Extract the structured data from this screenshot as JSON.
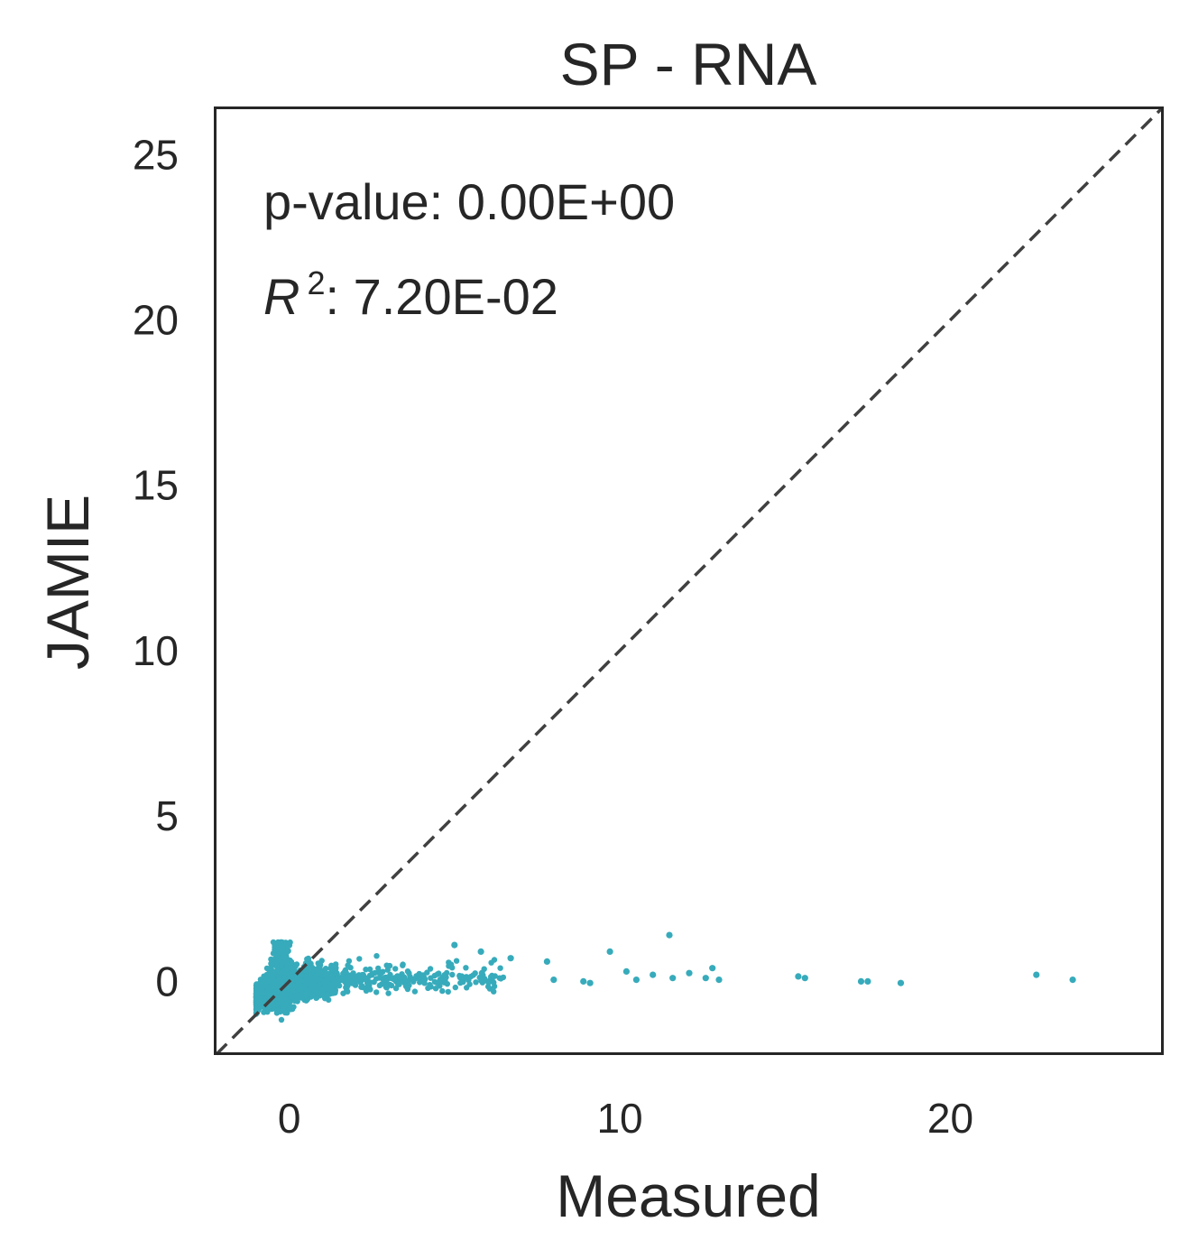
{
  "chart_data": {
    "type": "scatter",
    "title": "SP - RNA",
    "xlabel": "Measured",
    "ylabel": "JAMIE",
    "xlim": [
      -2.2,
      26.4
    ],
    "ylim": [
      -2.2,
      26.4
    ],
    "xticks": [
      0,
      10,
      20
    ],
    "yticks": [
      0,
      5,
      10,
      15,
      20,
      25
    ],
    "grid": false,
    "legend": "none",
    "reference_line": {
      "type": "identity",
      "style": "dashed",
      "color": "#404040"
    },
    "point_color": "#37abbb",
    "annotations": {
      "pvalue": "p-value: 0.00E+00",
      "r2_symbol": "R",
      "r2_exp": "2",
      "r2_value": ": 7.20E-02"
    },
    "highlight_points": [
      {
        "x": 11.5,
        "y": 1.4
      },
      {
        "x": 9.7,
        "y": 0.9
      },
      {
        "x": 5.0,
        "y": 1.1
      },
      {
        "x": 5.8,
        "y": 0.9
      },
      {
        "x": 6.7,
        "y": 0.7
      },
      {
        "x": 7.8,
        "y": 0.6
      },
      {
        "x": 8.0,
        "y": 0.05
      },
      {
        "x": 8.9,
        "y": 0.0
      },
      {
        "x": 9.1,
        "y": -0.05
      },
      {
        "x": 10.2,
        "y": 0.3
      },
      {
        "x": 10.5,
        "y": 0.05
      },
      {
        "x": 11.0,
        "y": 0.2
      },
      {
        "x": 11.6,
        "y": 0.1
      },
      {
        "x": 12.1,
        "y": 0.25
      },
      {
        "x": 12.6,
        "y": 0.1
      },
      {
        "x": 12.8,
        "y": 0.4
      },
      {
        "x": 13.0,
        "y": 0.05
      },
      {
        "x": 15.4,
        "y": 0.15
      },
      {
        "x": 15.6,
        "y": 0.1
      },
      {
        "x": 17.3,
        "y": 0.0
      },
      {
        "x": 17.5,
        "y": 0.0
      },
      {
        "x": 18.5,
        "y": -0.05
      },
      {
        "x": 22.6,
        "y": 0.2
      },
      {
        "x": 23.7,
        "y": 0.05
      }
    ]
  }
}
